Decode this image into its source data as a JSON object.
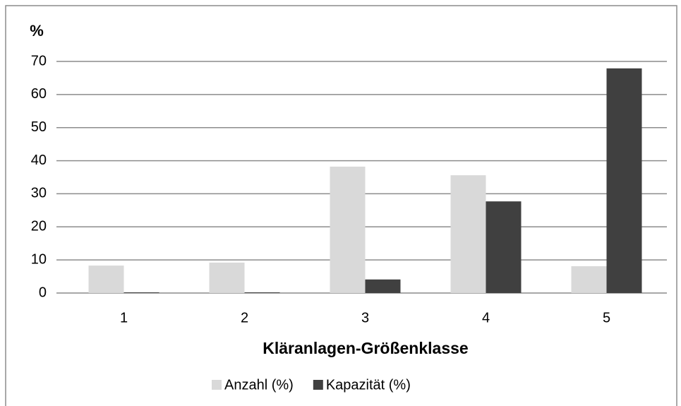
{
  "chart_data": {
    "type": "bar",
    "y_label": "%",
    "x_label": "Kläranlagen-Größenklasse",
    "categories": [
      "1",
      "2",
      "3",
      "4",
      "5"
    ],
    "series": [
      {
        "name": "Anzahl (%)",
        "color": "#d9d9d9",
        "values": [
          8.3,
          9.2,
          38.2,
          35.6,
          8.1
        ]
      },
      {
        "name": "Kapazität (%)",
        "color": "#404040",
        "values": [
          0.2,
          0.2,
          4.1,
          27.7,
          67.9
        ]
      }
    ],
    "ylim": [
      0,
      70
    ],
    "yticks": [
      0,
      10,
      20,
      30,
      40,
      50,
      60,
      70
    ],
    "grid": true
  }
}
